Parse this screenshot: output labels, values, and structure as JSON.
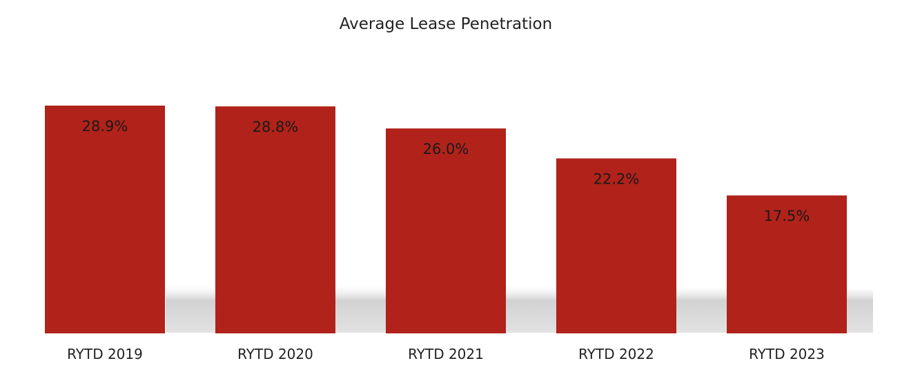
{
  "chart_data": {
    "type": "bar",
    "title": "Average Lease Penetration",
    "categories": [
      "RYTD 2019",
      "RYTD 2020",
      "RYTD 2021",
      "RYTD 2022",
      "RYTD 2023"
    ],
    "values": [
      28.9,
      28.8,
      26.0,
      22.2,
      17.5
    ],
    "data_labels": [
      "28.9%",
      "28.8%",
      "26.0%",
      "22.2%",
      "17.5%"
    ],
    "value_unit": "%",
    "ylim": [
      0,
      30
    ],
    "grid": false,
    "legend": "none",
    "bar_color": "#b0221a",
    "label_color": "#1a1a1a"
  }
}
